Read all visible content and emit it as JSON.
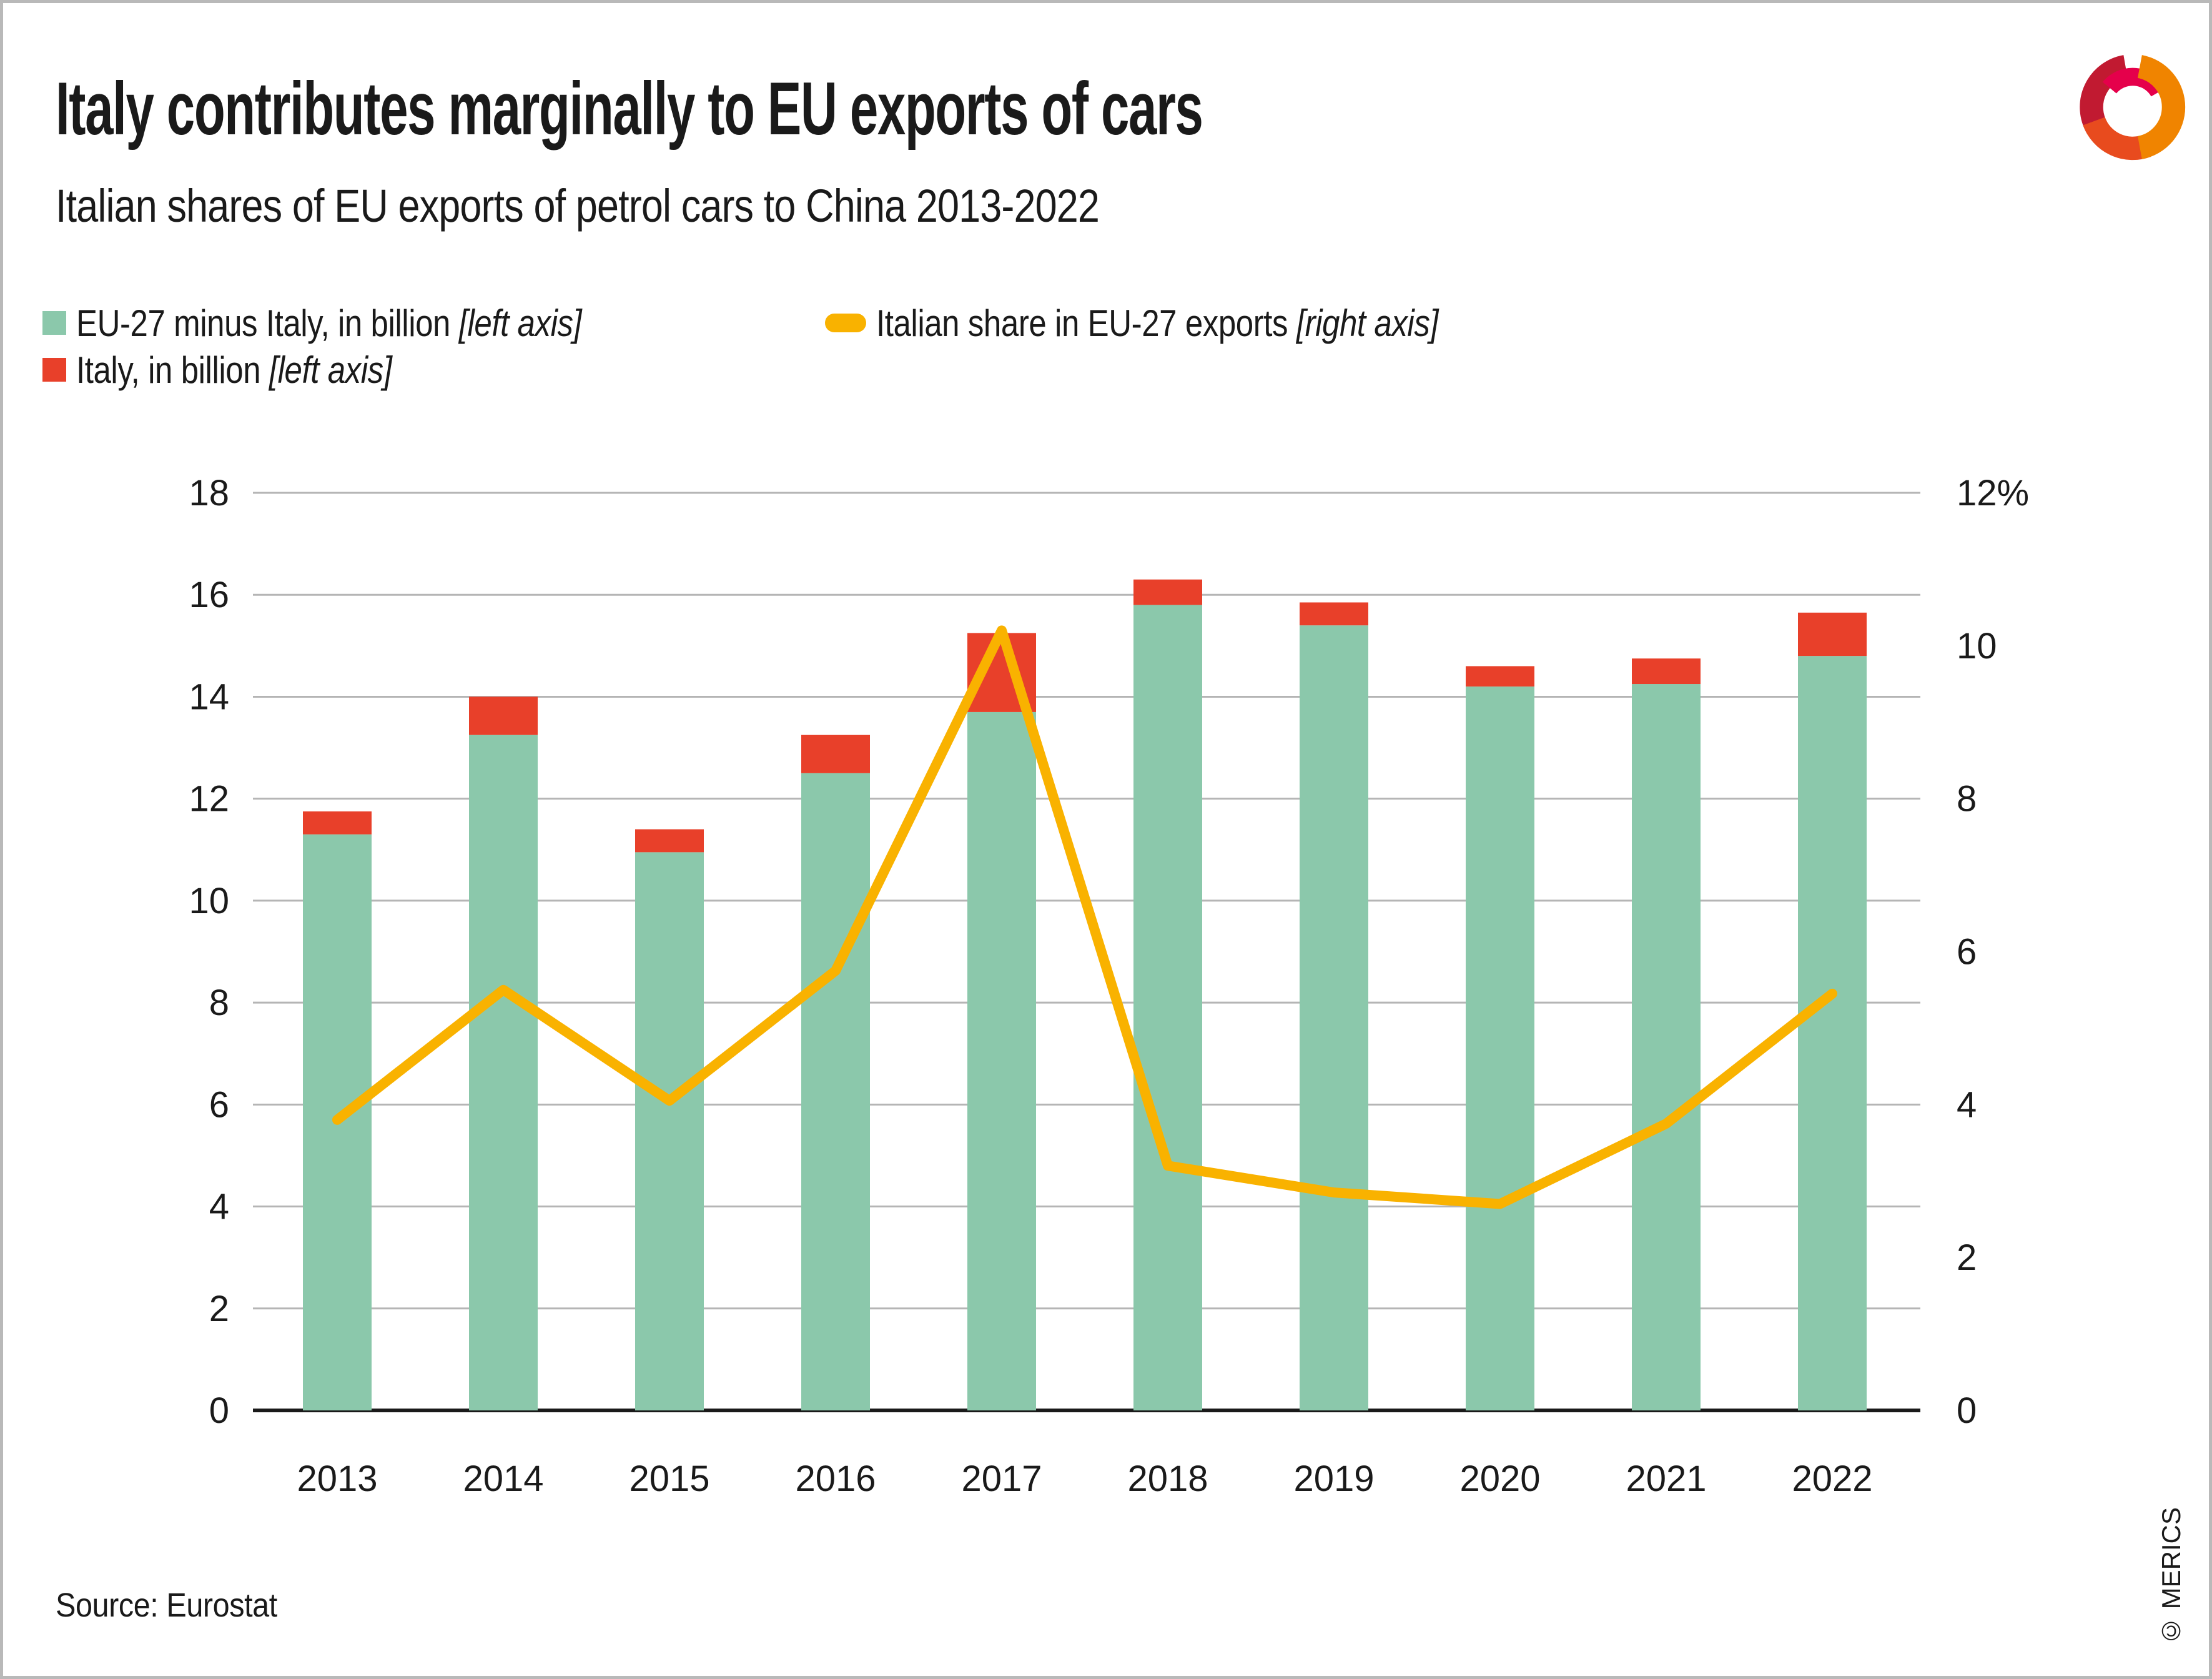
{
  "header": {
    "title": "Italy contributes marginally to EU exports of cars",
    "subtitle": "Italian shares of EU exports of petrol cars to China 2013-2022"
  },
  "legend": {
    "items": [
      {
        "label": "EU-27 minus Italy, in billion",
        "axis_note": "[left axis]",
        "marker": "square",
        "color": "#8BC8AB"
      },
      {
        "label": "Italy, in billion",
        "axis_note": "[left axis]",
        "marker": "square",
        "color": "#E8402A"
      },
      {
        "label": "Italian share in EU-27 exports",
        "axis_note": "[right axis]",
        "marker": "line",
        "color": "#F9B200"
      }
    ]
  },
  "chart_data": {
    "type": "bar",
    "subtype": "stacked-bar-with-line",
    "title": "Italian shares of EU exports of petrol cars to China 2013-2022",
    "categories": [
      "2013",
      "2014",
      "2015",
      "2016",
      "2017",
      "2018",
      "2019",
      "2020",
      "2021",
      "2022"
    ],
    "series": [
      {
        "name": "EU-27 minus Italy, in billion",
        "type": "bar",
        "axis": "left",
        "color": "#8BC8AB",
        "values": [
          11.3,
          13.25,
          10.95,
          12.5,
          13.7,
          15.8,
          15.4,
          14.2,
          14.25,
          14.8
        ]
      },
      {
        "name": "Italy, in billion",
        "type": "bar",
        "axis": "left",
        "color": "#E8402A",
        "values": [
          0.45,
          0.75,
          0.45,
          0.75,
          1.55,
          0.5,
          0.45,
          0.4,
          0.5,
          0.85
        ]
      },
      {
        "name": "Italian share in EU-27 exports",
        "type": "line",
        "axis": "right",
        "color": "#F9B200",
        "values": [
          3.8,
          5.5,
          4.05,
          5.75,
          10.2,
          3.2,
          2.85,
          2.7,
          3.75,
          5.45
        ]
      }
    ],
    "left_axis": {
      "min": 0,
      "max": 18,
      "tick_step": 2,
      "labels": [
        "0",
        "2",
        "4",
        "6",
        "8",
        "10",
        "12",
        "14",
        "16",
        "18"
      ]
    },
    "right_axis": {
      "min": 0,
      "max": 12,
      "tick_step": 2,
      "labels": [
        "0",
        "2",
        "4",
        "6",
        "8",
        "10",
        "12%"
      ]
    },
    "grid": "horizontal",
    "gridline_color": "#b5b5b5",
    "axis_line_color": "#1a1a1a",
    "legend_position": "top-left"
  },
  "footer": {
    "source": "Source: Eurostat",
    "copyright": "© MERICS"
  }
}
